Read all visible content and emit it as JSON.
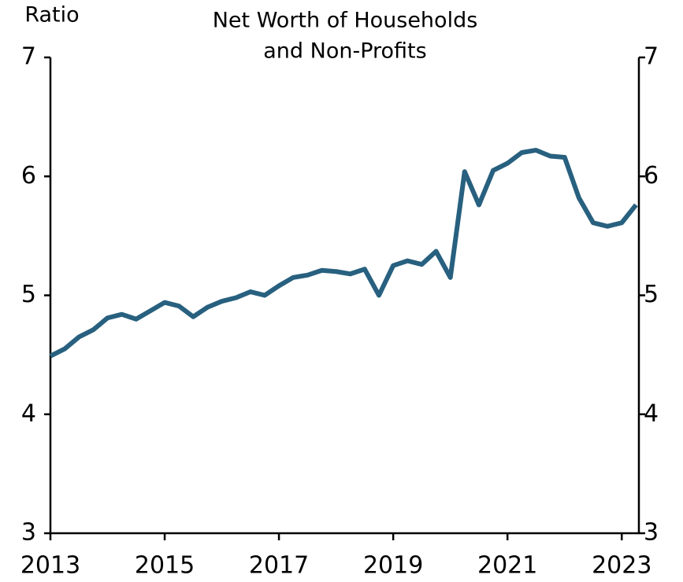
{
  "chart_data": {
    "type": "line",
    "title": [
      "Net Worth of Households",
      "and Non-Profits"
    ],
    "y_label": "Ratio",
    "x": [
      2013,
      2013.25,
      2013.5,
      2013.75,
      2014,
      2014.25,
      2014.5,
      2014.75,
      2015,
      2015.25,
      2015.5,
      2015.75,
      2016,
      2016.25,
      2016.5,
      2016.75,
      2017,
      2017.25,
      2017.5,
      2017.75,
      2018,
      2018.25,
      2018.5,
      2018.75,
      2019,
      2019.25,
      2019.5,
      2019.75,
      2020,
      2020.25,
      2020.5,
      2020.75,
      2021,
      2021.25,
      2021.5,
      2021.75,
      2022,
      2022.25,
      2022.5,
      2022.75,
      2023,
      2023.25
    ],
    "series": [
      {
        "name": "Net Worth of Households and Non-Profits",
        "color": "#28607f",
        "values": [
          4.49,
          4.55,
          4.65,
          4.71,
          4.81,
          4.84,
          4.8,
          4.87,
          4.94,
          4.91,
          4.82,
          4.9,
          4.95,
          4.98,
          5.03,
          5.0,
          5.08,
          5.15,
          5.17,
          5.21,
          5.2,
          5.18,
          5.22,
          5.0,
          5.25,
          5.29,
          5.26,
          5.37,
          5.15,
          6.04,
          5.76,
          6.05,
          6.11,
          6.2,
          6.22,
          6.17,
          6.16,
          5.82,
          5.61,
          5.58,
          5.61,
          5.76
        ]
      }
    ],
    "xlim": [
      2013,
      2023.3
    ],
    "xticks": [
      2013,
      2015,
      2017,
      2019,
      2021,
      2023
    ],
    "ylim": [
      3,
      7
    ],
    "yticks": [
      3,
      4,
      5,
      6,
      7
    ],
    "y2lim": [
      3,
      7
    ],
    "y2ticks": [
      3,
      4,
      5,
      6,
      7
    ]
  }
}
